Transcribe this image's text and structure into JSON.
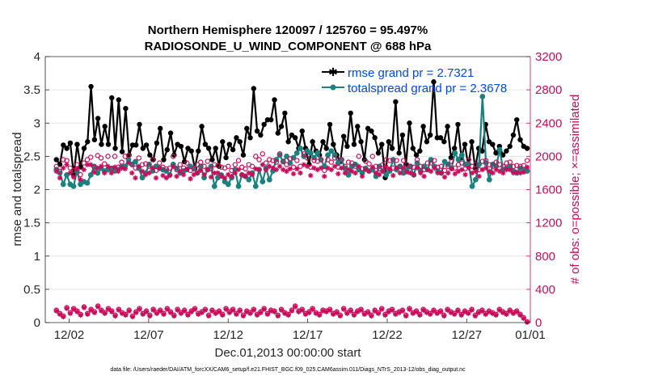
{
  "chart_data": {
    "type": "line",
    "title": "Northern Hemisphere 120097 / 125760 = 95.497%",
    "subtitle": "RADIOSONDE_U_WIND_COMPONENT @ 688 hPa",
    "xlabel": "Dec.01,2013 00:00:00 start",
    "ylabel": "rmse and totalspread",
    "ylabel_right": "# of obs: o=possible; ×=assimilated",
    "footnote": "data file: /Users/raeder/DAI/ATM_forcXX/CAM6_setup/f.e21.FHIST_BGC.f09_025.CAM6assim.011/Diags_NTrS_2013-12/obs_diag_output.nc",
    "xlim": [
      0.5,
      31.0
    ],
    "ylim": [
      0,
      4
    ],
    "ylim_right": [
      0,
      3200
    ],
    "x_tick_labels": [
      "12/02",
      "12/07",
      "12/12",
      "12/17",
      "12/22",
      "12/27",
      "01/01"
    ],
    "y_tick_labels": [
      "0",
      "0.5",
      "1",
      "1.5",
      "2",
      "2.5",
      "3",
      "3.5",
      "4"
    ],
    "y_right_tick_labels": [
      "0",
      "400",
      "800",
      "1200",
      "1600",
      "2000",
      "2400",
      "2800",
      "3200"
    ],
    "legend": {
      "location": "top-right",
      "entries": [
        "rmse grand pr = 2.7321",
        "totalspread grand pr = 2.3678"
      ]
    },
    "series": [
      {
        "name": "rmse",
        "axis": "left",
        "color": "#000000",
        "marker": "star",
        "values": [
          2.45,
          2.38,
          2.67,
          2.62,
          2.7,
          2.22,
          2.68,
          2.34,
          2.62,
          2.72,
          3.55,
          2.75,
          3.07,
          2.68,
          2.95,
          2.68,
          3.38,
          2.62,
          3.35,
          2.57,
          3.22,
          2.52,
          2.67,
          2.67,
          2.98,
          2.62,
          2.67,
          2.52,
          2.45,
          2.7,
          2.92,
          2.45,
          2.6,
          2.85,
          2.52,
          2.68,
          2.65,
          2.42,
          2.62,
          2.58,
          2.32,
          2.58,
          2.95,
          2.68,
          2.62,
          2.45,
          2.62,
          2.35,
          2.72,
          2.48,
          2.68,
          2.6,
          2.78,
          2.72,
          2.52,
          2.92,
          2.78,
          3.52,
          2.88,
          2.82,
          2.98,
          3.05,
          3.05,
          3.35,
          2.85,
          2.95,
          3.15,
          2.72,
          2.82,
          2.78,
          2.62,
          2.88,
          2.62,
          2.38,
          2.72,
          2.58,
          2.52,
          2.72,
          2.62,
          2.98,
          2.68,
          2.52,
          2.42,
          2.8,
          2.65,
          3.15,
          2.68,
          2.95,
          2.72,
          2.45,
          2.92,
          2.88,
          2.78,
          2.55,
          2.68,
          2.18,
          2.72,
          2.62,
          3.32,
          2.55,
          2.82,
          2.38,
          3.0,
          2.62,
          2.52,
          2.58,
          2.95,
          2.72,
          2.82,
          3.62,
          2.78,
          2.78,
          2.72,
          2.95,
          2.48,
          2.62,
          2.98,
          2.48,
          2.68,
          2.35,
          2.72,
          2.32,
          2.62,
          2.58,
          2.98,
          2.72,
          2.68,
          2.55,
          2.65,
          2.52,
          2.58,
          2.65,
          2.82,
          3.05,
          2.75,
          2.65,
          2.62
        ],
        "__note": "rmse"
      },
      {
        "name": "totalspread",
        "axis": "left",
        "color": "#1a8080",
        "marker": "circle",
        "values": [
          2.3,
          2.25,
          2.08,
          2.22,
          2.08,
          2.05,
          2.28,
          2.08,
          2.12,
          2.1,
          2.22,
          2.35,
          2.25,
          2.32,
          2.28,
          2.3,
          2.32,
          2.28,
          2.3,
          2.35,
          2.35,
          2.45,
          2.38,
          2.42,
          2.32,
          2.18,
          2.25,
          2.38,
          2.28,
          2.35,
          2.32,
          2.3,
          2.28,
          2.22,
          2.38,
          2.32,
          2.25,
          2.28,
          2.3,
          2.35,
          2.32,
          2.25,
          2.35,
          2.18,
          2.3,
          2.35,
          2.05,
          2.18,
          2.22,
          2.12,
          2.08,
          2.18,
          2.3,
          2.05,
          2.22,
          2.2,
          2.15,
          2.25,
          2.05,
          2.3,
          2.12,
          2.32,
          2.15,
          2.28,
          2.45,
          2.52,
          2.42,
          2.5,
          2.4,
          2.48,
          2.55,
          2.62,
          2.5,
          2.58,
          2.55,
          2.48,
          2.55,
          2.45,
          2.35,
          2.52,
          2.58,
          2.52,
          2.4,
          2.45,
          2.32,
          2.22,
          2.35,
          2.38,
          2.3,
          2.25,
          2.32,
          2.28,
          2.3,
          2.2,
          2.35,
          2.28,
          2.22,
          2.28,
          2.45,
          2.3,
          2.35,
          2.25,
          2.3,
          2.35,
          2.22,
          2.4,
          2.28,
          2.35,
          2.3,
          2.45,
          2.35,
          2.28,
          2.25,
          2.42,
          2.38,
          2.32,
          2.55,
          2.45,
          2.52,
          2.38,
          2.38,
          2.05,
          2.15,
          2.38,
          3.4,
          2.4,
          2.15,
          2.38,
          2.35,
          2.6,
          2.3,
          2.32,
          2.35,
          2.28,
          2.25,
          2.32,
          2.3,
          2.28
        ]
      },
      {
        "name": "possible",
        "axis": "right",
        "color": "#cc0a5a",
        "marker": "circle-open",
        "values": [
          1880,
          1820,
          1960,
          1950,
          1860,
          1830,
          1900,
          1780,
          1920,
          1960,
          1990,
          1870,
          2010,
          1980,
          1910,
          2000,
          1850,
          2000,
          1870,
          1930,
          2000,
          2010,
          1900,
          1860,
          1980,
          1900,
          1910,
          1880,
          1960,
          1830,
          1920,
          1870,
          1850,
          1860,
          2000,
          1840,
          1900,
          1860,
          1920,
          1830,
          1850,
          1900,
          1930,
          1880,
          1940,
          1850,
          1900,
          1890,
          1870,
          1860,
          1880,
          1830,
          1900,
          1950,
          1870,
          1850,
          1900,
          1880,
          2000,
          1960,
          2030,
          1920,
          1960,
          1950,
          1930,
          2030,
          1940,
          1900,
          1970,
          1870,
          1950,
          1880,
          2030,
          1980,
          1870,
          1950,
          1940,
          1960,
          1830,
          1960,
          1930,
          1980,
          1870,
          1960,
          1880,
          1930,
          1920,
          1880,
          2000,
          1850,
          1940,
          1910,
          2000,
          1880,
          1850,
          1900,
          1960,
          1950,
          1860,
          1950,
          1880,
          1950,
          1900,
          1880,
          1870,
          1960,
          1880,
          1840,
          1920,
          1920,
          1950,
          1870,
          1880,
          1830,
          1880,
          1940,
          1860,
          1900,
          1920,
          1850,
          1960,
          1880,
          1900,
          1840,
          1940,
          1950,
          1900,
          1880,
          1930,
          1900,
          1880,
          1920,
          1930,
          1880,
          1890,
          1880,
          1890,
          1950
        ]
      },
      {
        "name": "assimilated",
        "axis": "right",
        "color": "#cc0a5a",
        "marker": "asterisk",
        "values": [
          1820,
          1740,
          1860,
          1900,
          1800,
          1750,
          1850,
          1720,
          1840,
          1900,
          1900,
          1810,
          1860,
          1880,
          1800,
          1880,
          1800,
          1870,
          1820,
          1860,
          1850,
          1920,
          1800,
          1740,
          1880,
          1820,
          1780,
          1800,
          1860,
          1740,
          1860,
          1770,
          1740,
          1770,
          1880,
          1760,
          1820,
          1780,
          1850,
          1730,
          1780,
          1800,
          1830,
          1780,
          1840,
          1750,
          1800,
          1800,
          1760,
          1740,
          1780,
          1760,
          1800,
          1840,
          1780,
          1760,
          1800,
          1780,
          1850,
          1840,
          1900,
          1840,
          1880,
          1860,
          1840,
          1880,
          1840,
          1820,
          1850,
          1790,
          1850,
          1800,
          1900,
          1880,
          1770,
          1860,
          1840,
          1860,
          1760,
          1860,
          1840,
          1880,
          1790,
          1860,
          1800,
          1840,
          1820,
          1800,
          1880,
          1760,
          1840,
          1820,
          1870,
          1800,
          1780,
          1820,
          1870,
          1850,
          1770,
          1860,
          1800,
          1860,
          1810,
          1800,
          1780,
          1860,
          1800,
          1760,
          1840,
          1820,
          1860,
          1800,
          1800,
          1750,
          1800,
          1850,
          1790,
          1820,
          1840,
          1780,
          1860,
          1800,
          1820,
          1760,
          1840,
          1860,
          1820,
          1800,
          1840,
          1820,
          1800,
          1840,
          1840,
          1800,
          1810,
          1800,
          1810,
          1870
        ]
      },
      {
        "name": "possible (bottom)",
        "axis": "right",
        "color": "#cc0a5a",
        "marker": "circle-open",
        "values": [
          150,
          110,
          80,
          180,
          120,
          170,
          140,
          100,
          190,
          110,
          160,
          130,
          200,
          150,
          120,
          170,
          140,
          90,
          160,
          120,
          100,
          150,
          80,
          130,
          170,
          110,
          140,
          90,
          160,
          120,
          150,
          110,
          170,
          130,
          90,
          160,
          120,
          150,
          100,
          140,
          170,
          110,
          130,
          160,
          90,
          150,
          120,
          140,
          100,
          170,
          130,
          160,
          110,
          150,
          90,
          140,
          120,
          160,
          100,
          130,
          170,
          110,
          150,
          140,
          90,
          160,
          120,
          100,
          150,
          200,
          140,
          160,
          110,
          130,
          170,
          120,
          100,
          150,
          140,
          160,
          110,
          130,
          90,
          170,
          120,
          150,
          100,
          140,
          160,
          110,
          130,
          90,
          150,
          120,
          170,
          100,
          140,
          160,
          110,
          130,
          150,
          90,
          170,
          120,
          140,
          100,
          160,
          130,
          110,
          150,
          120,
          140,
          90,
          160,
          130,
          110,
          150,
          100,
          140,
          120,
          160,
          90,
          130,
          150,
          110,
          140,
          120,
          100,
          160,
          130,
          110,
          150,
          120,
          140,
          100,
          60,
          10
        ]
      },
      {
        "name": "assimilated (bottom)",
        "axis": "right",
        "color": "#cc0a5a",
        "marker": "asterisk",
        "values": [
          140,
          100,
          70,
          170,
          110,
          160,
          130,
          90,
          180,
          100,
          150,
          120,
          190,
          140,
          110,
          160,
          130,
          80,
          150,
          110,
          90,
          140,
          70,
          120,
          160,
          100,
          130,
          80,
          150,
          110,
          140,
          100,
          160,
          120,
          80,
          150,
          110,
          140,
          90,
          130,
          160,
          100,
          120,
          150,
          80,
          140,
          110,
          130,
          90,
          160,
          120,
          150,
          100,
          140,
          80,
          130,
          110,
          150,
          90,
          120,
          160,
          100,
          140,
          130,
          80,
          150,
          110,
          90,
          140,
          190,
          130,
          150,
          100,
          120,
          160,
          110,
          90,
          140,
          130,
          150,
          100,
          120,
          80,
          160,
          110,
          140,
          90,
          130,
          150,
          100,
          120,
          80,
          140,
          110,
          160,
          90,
          130,
          150,
          100,
          120,
          140,
          80,
          160,
          110,
          130,
          90,
          150,
          120,
          100,
          140,
          110,
          130,
          80,
          150,
          120,
          100,
          140,
          90,
          130,
          110,
          150,
          80,
          120,
          140,
          100,
          130,
          110,
          90,
          150,
          120,
          100,
          140,
          110,
          130,
          90,
          50,
          5
        ]
      }
    ]
  }
}
